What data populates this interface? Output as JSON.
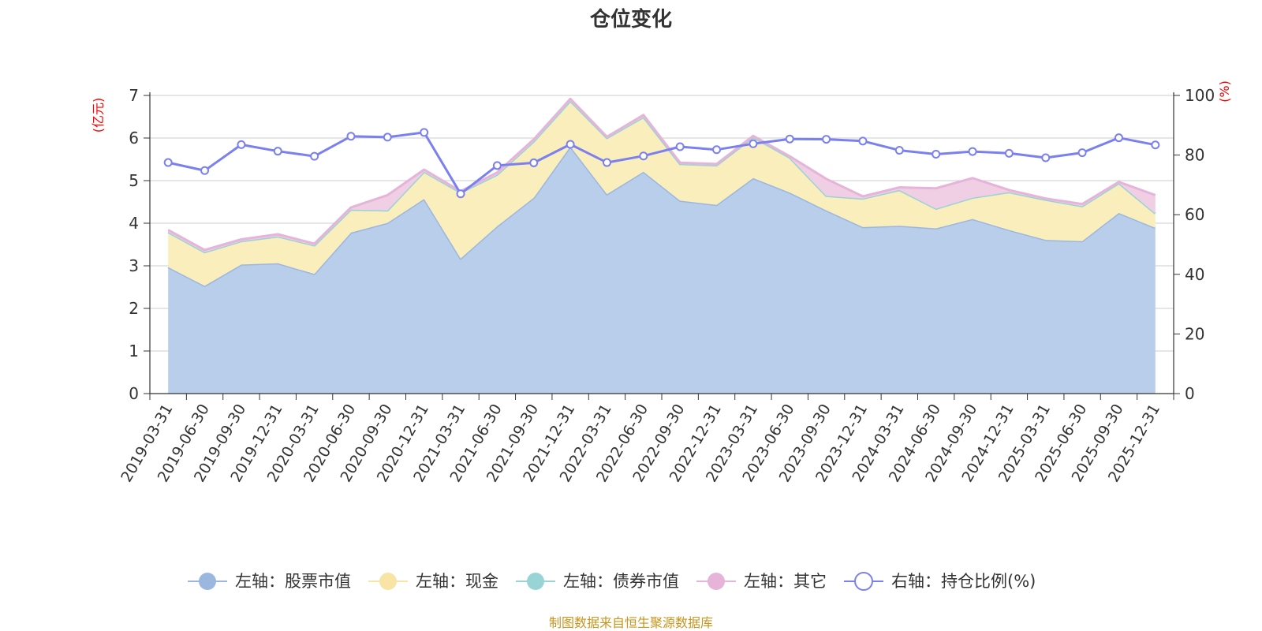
{
  "chart_data": {
    "type": "area",
    "title": "仓位变化",
    "left_unit": "(亿元)",
    "right_unit": "(%)",
    "left_ylim": [
      0,
      7
    ],
    "left_ticks": [
      "0",
      "1",
      "2",
      "3",
      "4",
      "5",
      "6",
      "7"
    ],
    "right_ylim": [
      0,
      100
    ],
    "right_ticks": [
      "0",
      "20",
      "40",
      "60",
      "80",
      "100"
    ],
    "categories": [
      "2019-03-31",
      "2019-06-30",
      "2019-09-30",
      "2019-12-31",
      "2020-03-31",
      "2020-06-30",
      "2020-09-30",
      "2020-12-31",
      "2021-03-31",
      "2021-06-30",
      "2021-09-30",
      "2021-12-31",
      "2022-03-31",
      "2022-06-30",
      "2022-09-30",
      "2022-12-31",
      "2023-03-31",
      "2023-06-30",
      "2023-09-30",
      "2023-12-31",
      "2024-03-31",
      "2024-06-30",
      "2024-09-30",
      "2024-12-31",
      "2025-03-31",
      "2025-06-30",
      "2025-09-30",
      "2025-12-31"
    ],
    "series": [
      {
        "name": "左轴：股票市值",
        "axis": "left",
        "color": "#9bb7e0",
        "fill": "#b8ceeb",
        "values": [
          2.97,
          2.53,
          3.03,
          3.06,
          2.81,
          3.78,
          4.01,
          4.57,
          3.17,
          3.93,
          4.6,
          5.8,
          4.68,
          5.21,
          4.53,
          4.43,
          5.06,
          4.72,
          4.3,
          3.91,
          3.94,
          3.88,
          4.1,
          3.84,
          3.61,
          3.58,
          4.24,
          3.89
        ]
      },
      {
        "name": "左轴：现金",
        "axis": "left",
        "color": "#f8e5a5",
        "fill": "#faeebd",
        "values": [
          0.82,
          0.79,
          0.55,
          0.63,
          0.67,
          0.54,
          0.29,
          0.64,
          1.55,
          1.21,
          1.32,
          1.07,
          1.32,
          1.28,
          0.86,
          0.93,
          0.96,
          0.82,
          0.34,
          0.67,
          0.84,
          0.46,
          0.5,
          0.89,
          0.94,
          0.82,
          0.7,
          0.34
        ]
      },
      {
        "name": "左轴：债券市值",
        "axis": "left",
        "color": "#98d3d6",
        "fill": "#b8e1e3",
        "values": [
          0,
          0,
          0,
          0,
          0,
          0,
          0,
          0,
          0,
          0,
          0,
          0,
          0,
          0,
          0,
          0,
          0,
          0,
          0,
          0,
          0,
          0,
          0,
          0,
          0,
          0,
          0,
          0
        ]
      },
      {
        "name": "左轴：其它",
        "axis": "left",
        "color": "#e6b3d9",
        "fill": "#f0cfe5",
        "values": [
          0.05,
          0.05,
          0.04,
          0.05,
          0.04,
          0.05,
          0.36,
          0.05,
          0.03,
          0.05,
          0.05,
          0.05,
          0.03,
          0.05,
          0.03,
          0.03,
          0.03,
          0.03,
          0.4,
          0.05,
          0.06,
          0.48,
          0.46,
          0.05,
          0.03,
          0.05,
          0.03,
          0.43
        ]
      },
      {
        "name": "右轴：持仓比例(%)",
        "axis": "right",
        "color": "#7b80f0",
        "values": [
          77.5,
          74.8,
          83.5,
          81.3,
          79.6,
          86.3,
          86.0,
          87.6,
          67.0,
          76.5,
          77.4,
          83.6,
          77.5,
          79.7,
          82.8,
          81.8,
          83.8,
          85.4,
          85.3,
          84.7,
          81.6,
          80.3,
          81.2,
          80.6,
          79.1,
          80.8,
          85.8,
          83.4
        ]
      }
    ],
    "source_note": "制图数据来自恒生聚源数据库"
  }
}
